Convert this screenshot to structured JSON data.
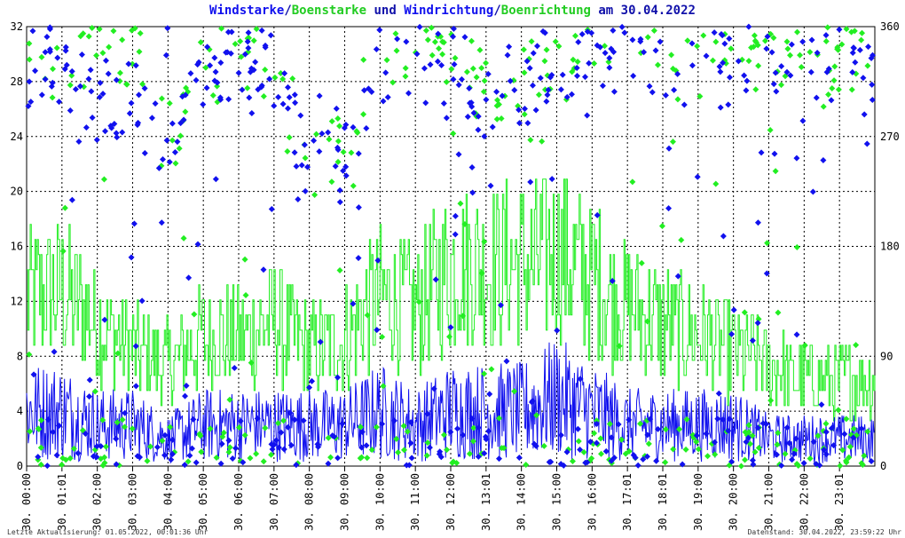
{
  "title": {
    "part1": "Windstarke",
    "sep1": "/",
    "part2": "Boenstarke",
    "part3": " und ",
    "part4": "Windrichtung",
    "sep2": "/",
    "part5": "Boenrichtung",
    "part6": " am 30.04.2022"
  },
  "footer": {
    "left": "Letzte Aktualisierung: 01.05.2022, 00:01:36 Uhr",
    "right": "Datenstand: 30.04.2022, 23:59:22 Uhr"
  },
  "colors": {
    "wind": "#1111ee",
    "gust": "#22ee22",
    "grid": "#000000",
    "axis": "#000000"
  },
  "chart_data": {
    "type": "line",
    "y_left": {
      "min": 0,
      "max": 32,
      "ticks": [
        "0",
        "4",
        "8",
        "12",
        "16",
        "20",
        "24",
        "28",
        "32"
      ]
    },
    "y_right": {
      "min": 0,
      "max": 360,
      "ticks": [
        "0",
        "90",
        "180",
        "270",
        "360"
      ]
    },
    "x_ticks": [
      "30. 00:00",
      "30. 01:01",
      "30. 02:00",
      "30. 03:00",
      "30. 04:00",
      "30. 05:00",
      "30. 06:00",
      "30. 07:00",
      "30. 08:00",
      "30. 09:00",
      "30. 10:00",
      "30. 11:00",
      "30. 12:00",
      "30. 13:01",
      "30. 14:00",
      "30. 15:00",
      "30. 16:00",
      "30. 17:01",
      "30. 18:01",
      "30. 19:00",
      "30. 20:00",
      "30. 21:00",
      "30. 22:00",
      "30. 23:01"
    ],
    "grid": true,
    "series": [
      {
        "name": "Windstarke",
        "color": "#1111ee",
        "hourly_level": [
          4,
          4,
          3,
          3,
          2,
          3,
          3,
          3,
          3,
          3,
          4,
          3,
          4,
          4,
          4,
          5,
          4,
          3,
          3,
          3,
          3,
          2,
          2,
          2
        ]
      },
      {
        "name": "Boenstarke",
        "color": "#22ee22",
        "hourly_level": [
          12,
          12,
          10,
          8,
          7,
          9,
          9,
          10,
          8,
          9,
          12,
          11,
          14,
          14,
          14,
          15,
          13,
          11,
          10,
          9,
          8,
          7,
          6,
          6
        ]
      },
      {
        "name": "Windrichtung",
        "color": "#1111ee",
        "hourly_level_deg": [
          320,
          330,
          300,
          300,
          260,
          310,
          330,
          330,
          250,
          250,
          330,
          340,
          330,
          300,
          310,
          330,
          340,
          340,
          330,
          320,
          330,
          340,
          340,
          330
        ]
      },
      {
        "name": "Boenrichtung",
        "color": "#22ee22",
        "hourly_level_deg": [
          330,
          335,
          340,
          340,
          260,
          320,
          340,
          335,
          250,
          250,
          340,
          345,
          340,
          310,
          320,
          340,
          345,
          350,
          335,
          330,
          345,
          345,
          345,
          335
        ]
      }
    ]
  }
}
